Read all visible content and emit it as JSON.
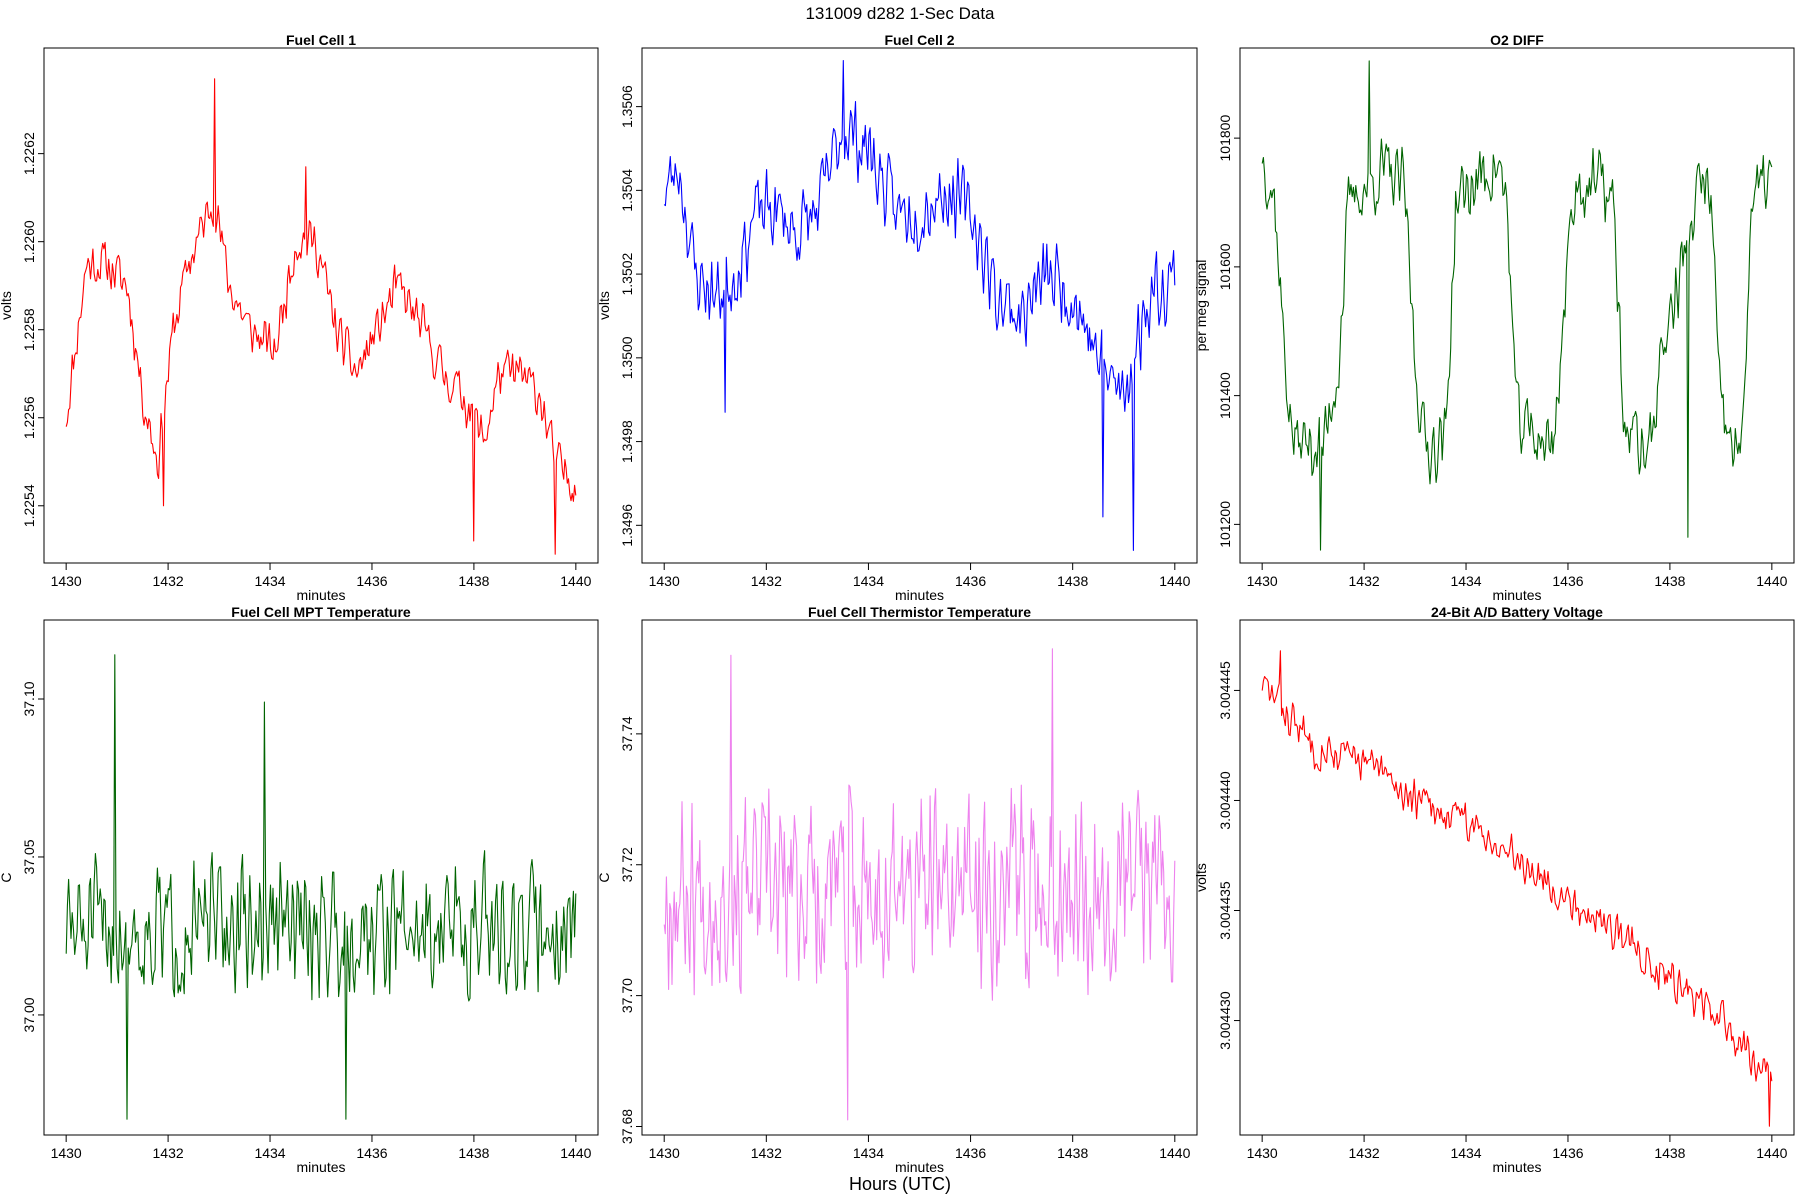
{
  "figure": {
    "title": "131009   d282   1-Sec Data",
    "xlabel": "Hours (UTC)"
  },
  "chart_data": [
    {
      "type": "line",
      "title": "Fuel Cell 1",
      "xlabel": "minutes",
      "ylabel": "volts",
      "color": "#ff0000",
      "xlim": [
        1430,
        1440
      ],
      "ylim": [
        1.22527,
        1.22644
      ],
      "xticks": [
        1430,
        1432,
        1434,
        1436,
        1438,
        1440
      ],
      "yticks": [
        1.2254,
        1.2256,
        1.2258,
        1.226,
        1.2262
      ],
      "ytick_labels": [
        "1.2254",
        "1.2256",
        "1.2258",
        "1.2260",
        "1.2262"
      ],
      "x": [
        1430,
        1430.4,
        1430.8,
        1431.2,
        1431.5,
        1431.8,
        1432.1,
        1432.4,
        1432.9,
        1433.2,
        1433.6,
        1434.1,
        1434.5,
        1434.9,
        1435.3,
        1435.7,
        1436.1,
        1436.5,
        1437,
        1437.4,
        1437.8,
        1438.2,
        1438.5,
        1438.9,
        1439.3,
        1439.6,
        1440
      ],
      "values": [
        1.2256,
        1.22595,
        1.22595,
        1.2259,
        1.22565,
        1.2255,
        1.2258,
        1.22595,
        1.2261,
        1.2259,
        1.2258,
        1.22575,
        1.226,
        1.226,
        1.2258,
        1.2257,
        1.2258,
        1.2259,
        1.2258,
        1.2257,
        1.22565,
        1.22555,
        1.2257,
        1.2257,
        1.22565,
        1.2255,
        1.22545
      ],
      "noise": 0.00013,
      "n": 420,
      "seed": 11,
      "spikes": [
        [
          1432.9,
          1.22637
        ],
        [
          1434.7,
          1.22617
        ],
        [
          1431.9,
          1.2254
        ],
        [
          1439.6,
          1.22529
        ],
        [
          1438,
          1.22532
        ]
      ]
    },
    {
      "type": "line",
      "title": "Fuel Cell 2",
      "xlabel": "minutes",
      "ylabel": "volts",
      "color": "#0000ff",
      "xlim": [
        1430,
        1440
      ],
      "ylim": [
        1.34951,
        1.35074
      ],
      "xticks": [
        1430,
        1432,
        1434,
        1436,
        1438,
        1440
      ],
      "yticks": [
        1.3496,
        1.3498,
        1.35,
        1.3502,
        1.3504,
        1.3506
      ],
      "ytick_labels": [
        "1.3496",
        "1.3498",
        "1.3500",
        "1.3502",
        "1.3504",
        "1.3506"
      ],
      "x": [
        1430,
        1430.3,
        1430.6,
        1431,
        1431.4,
        1431.8,
        1432.2,
        1432.6,
        1433,
        1433.5,
        1434,
        1434.5,
        1435,
        1435.5,
        1436,
        1436.5,
        1437,
        1437.5,
        1438,
        1438.5,
        1439,
        1439.5,
        1440
      ],
      "values": [
        1.3504,
        1.35045,
        1.3502,
        1.35015,
        1.3502,
        1.35035,
        1.35035,
        1.3503,
        1.35035,
        1.35055,
        1.3505,
        1.35035,
        1.35035,
        1.3504,
        1.35035,
        1.35015,
        1.3501,
        1.3502,
        1.35015,
        1.35,
        1.3499,
        1.35015,
        1.3502
      ],
      "noise": 0.00022,
      "n": 420,
      "seed": 23,
      "spikes": [
        [
          1433.5,
          1.35071
        ],
        [
          1431.2,
          1.34987
        ],
        [
          1439.2,
          1.34954
        ],
        [
          1438.6,
          1.34962
        ]
      ]
    },
    {
      "type": "line",
      "title": "O2 DIFF",
      "xlabel": "minutes",
      "ylabel": "per meg signal",
      "color": "#006400",
      "xlim": [
        1430,
        1440
      ],
      "ylim": [
        101140,
        101940
      ],
      "xticks": [
        1430,
        1432,
        1434,
        1436,
        1438,
        1440
      ],
      "yticks": [
        101200,
        101400,
        101600,
        101800
      ],
      "ytick_labels": [
        "101200",
        "101400",
        "101600",
        "101800"
      ],
      "x": [
        1430,
        1430.25,
        1430.45,
        1430.6,
        1431.2,
        1431.5,
        1431.7,
        1432.4,
        1432.8,
        1433.0,
        1433.2,
        1433.6,
        1433.8,
        1434.6,
        1434.8,
        1435.0,
        1435.7,
        1435.9,
        1436.1,
        1436.7,
        1436.9,
        1437.1,
        1437.6,
        1437.8,
        1438.6,
        1438.8,
        1439.0,
        1439.4,
        1439.6,
        1440
      ],
      "values": [
        101780,
        101700,
        101450,
        101330,
        101320,
        101450,
        101700,
        101750,
        101720,
        101450,
        101320,
        101330,
        101700,
        101760,
        101700,
        101360,
        101320,
        101500,
        101720,
        101730,
        101690,
        101350,
        101310,
        101450,
        101730,
        101720,
        101360,
        101300,
        101700,
        101750
      ],
      "noise": 130,
      "n": 420,
      "seed": 37,
      "spikes": [
        [
          1432.1,
          101920
        ],
        [
          1431.15,
          101160
        ],
        [
          1438.35,
          101180
        ]
      ]
    },
    {
      "type": "line",
      "title": "Fuel Cell MPT Temperature",
      "xlabel": "minutes",
      "ylabel": "C",
      "color": "#006400",
      "xlim": [
        1430,
        1440
      ],
      "ylim": [
        36.962,
        37.125
      ],
      "xticks": [
        1430,
        1432,
        1434,
        1436,
        1438,
        1440
      ],
      "yticks": [
        37.0,
        37.05,
        37.1
      ],
      "ytick_labels": [
        "37.00",
        "37.05",
        "37.10"
      ],
      "x": [
        1430,
        1440
      ],
      "values": [
        37.027,
        37.028
      ],
      "noise": 0.052,
      "n": 420,
      "seed": 51,
      "spikes": [
        [
          1430.95,
          37.114
        ],
        [
          1433.9,
          37.099
        ],
        [
          1431.2,
          36.967
        ],
        [
          1435.5,
          36.967
        ]
      ]
    },
    {
      "type": "line",
      "title": "Fuel Cell Thermistor Temperature",
      "xlabel": "minutes",
      "ylabel": "C",
      "color": "#ee82ee",
      "xlim": [
        1430,
        1440
      ],
      "ylim": [
        37.6787,
        37.7574
      ],
      "xticks": [
        1430,
        1432,
        1434,
        1436,
        1438,
        1440
      ],
      "yticks": [
        37.68,
        37.7,
        37.72,
        37.74
      ],
      "ytick_labels": [
        "37.68",
        "37.70",
        "37.72",
        "37.74"
      ],
      "x": [
        1430,
        1435,
        1440
      ],
      "values": [
        37.716,
        37.716,
        37.718
      ],
      "noise": 0.036,
      "n": 460,
      "seed": 67,
      "spikes": [
        [
          1437.6,
          37.753
        ],
        [
          1433.6,
          37.681
        ],
        [
          1431.3,
          37.752
        ]
      ]
    },
    {
      "type": "line",
      "title": "24-Bit A/D Battery Voltage",
      "xlabel": "minutes",
      "ylabel": "volts",
      "color": "#ff0000",
      "xlim": [
        1430,
        1440
      ],
      "ylim": [
        3.0044248,
        3.0044482
      ],
      "xticks": [
        1430,
        1432,
        1434,
        1436,
        1438,
        1440
      ],
      "yticks": [
        3.00443,
        3.004435,
        3.00444,
        3.004445
      ],
      "ytick_labels": [
        "3.004430",
        "3.004435",
        "3.004440",
        "3.004445"
      ],
      "x": [
        1430,
        1431,
        1432,
        1433,
        1434,
        1435,
        1436,
        1437,
        1438,
        1439,
        1440
      ],
      "values": [
        3.0044453,
        3.0044425,
        3.0044418,
        3.00444,
        3.004439,
        3.0044375,
        3.0044355,
        3.004434,
        3.004432,
        3.00443,
        3.0044275
      ],
      "noise": 2.2e-06,
      "n": 420,
      "seed": 83,
      "spikes": [
        [
          1430.35,
          3.0044468
        ],
        [
          1439.95,
          3.0044252
        ]
      ]
    }
  ]
}
